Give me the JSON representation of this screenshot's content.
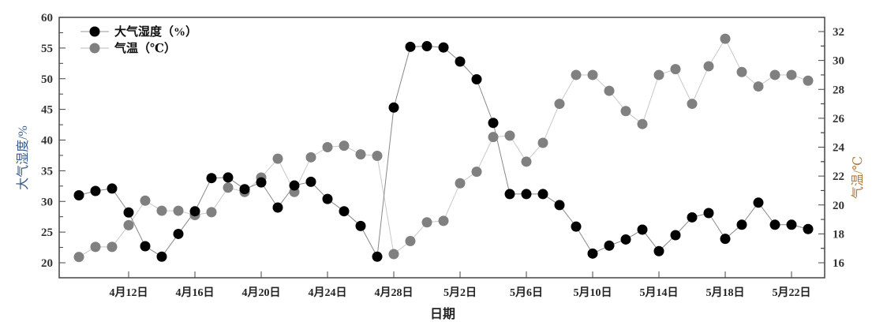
{
  "chart_data": {
    "type": "line",
    "xlabel": "日期",
    "ylabel_left": "大气湿度/%",
    "ylabel_right": "气温/℃",
    "ylim_left": [
      20,
      60
    ],
    "ylim_right": [
      16,
      32
    ],
    "yticks_left": [
      20,
      25,
      30,
      35,
      40,
      45,
      50,
      55,
      60
    ],
    "yticks_right": [
      16,
      18,
      20,
      22,
      24,
      26,
      28,
      30,
      32
    ],
    "xtick_labels": [
      "4月12日",
      "4月16日",
      "4月20日",
      "4月24日",
      "4月28日",
      "5月2日",
      "5月6日",
      "5月10日",
      "5月14日",
      "5月18日",
      "5月22日"
    ],
    "x": [
      "4/9",
      "4/10",
      "4/11",
      "4/12",
      "4/13",
      "4/14",
      "4/15",
      "4/16",
      "4/17",
      "4/18",
      "4/19",
      "4/20",
      "4/21",
      "4/22",
      "4/23",
      "4/24",
      "4/25",
      "4/26",
      "4/27",
      "4/28",
      "4/29",
      "4/30",
      "5/1",
      "5/2",
      "5/3",
      "5/4",
      "5/5",
      "5/6",
      "5/7",
      "5/8",
      "5/9",
      "5/10",
      "5/11",
      "5/12",
      "5/13",
      "5/14",
      "5/15",
      "5/16",
      "5/17",
      "5/18",
      "5/19",
      "5/20",
      "5/21",
      "5/22",
      "5/23"
    ],
    "legend_position": "top-left",
    "grid": false,
    "series": [
      {
        "name": "大气湿度（%）",
        "axis": "left",
        "color": "#000000",
        "values": [
          31,
          31.7,
          32.1,
          28.2,
          22.7,
          21,
          24.7,
          28.4,
          33.8,
          33.9,
          32,
          33.1,
          29,
          32.6,
          33.2,
          30.4,
          28.4,
          26,
          21,
          45.3,
          55.2,
          55.3,
          55.1,
          52.8,
          49.9,
          42.8,
          31.2,
          31.2,
          31.2,
          29.4,
          25.9,
          21.5,
          22.8,
          23.8,
          25.4,
          21.9,
          24.5,
          27.4,
          28.1,
          23.9,
          26.2,
          29.8,
          26.2,
          26.2,
          25.5
        ]
      },
      {
        "name": "气温（℃）",
        "axis": "right",
        "color": "#808080",
        "values": [
          16.4,
          17.1,
          17.1,
          18.6,
          20.3,
          19.6,
          19.6,
          19.3,
          19.5,
          21.2,
          20.9,
          21.9,
          23.2,
          20.9,
          23.3,
          24.0,
          24.1,
          23.5,
          23.4,
          16.6,
          17.5,
          18.8,
          18.9,
          21.5,
          22.3,
          24.7,
          24.8,
          23.0,
          24.3,
          27.0,
          29.0,
          29.0,
          27.9,
          26.5,
          25.6,
          29.0,
          29.4,
          27.0,
          29.6,
          31.5,
          29.2,
          28.2,
          29.0,
          29.0,
          28.6
        ]
      }
    ],
    "label_colors": {
      "left": "#3a5a8c",
      "right": "#b07a40"
    }
  }
}
